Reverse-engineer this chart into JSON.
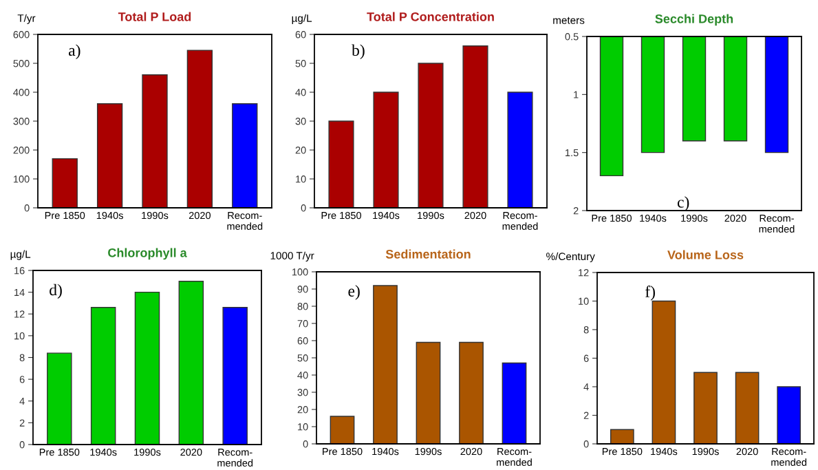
{
  "chart_data": [
    {
      "type": "bar",
      "title": "Total P Load",
      "ylabel": "T/yr",
      "categories": [
        "Pre 1850",
        "1940s",
        "1990s",
        "2020",
        "Recom-\nmended"
      ],
      "values": [
        170,
        360,
        460,
        545,
        360
      ],
      "colors": [
        "#aa0000",
        "#aa0000",
        "#aa0000",
        "#aa0000",
        "#0000ff"
      ],
      "ylim": [
        0,
        600
      ],
      "yticks": [
        0,
        100,
        200,
        300,
        400,
        500,
        600
      ],
      "annotations": [
        "a)"
      ],
      "grid": false,
      "legend": false
    },
    {
      "type": "bar",
      "title": "Total P Concentration",
      "ylabel": "µg/L",
      "categories": [
        "Pre 1850",
        "1940s",
        "1990s",
        "2020",
        "Recom-\nmended"
      ],
      "values": [
        30,
        40,
        50,
        56,
        40
      ],
      "colors": [
        "#aa0000",
        "#aa0000",
        "#aa0000",
        "#aa0000",
        "#0000ff"
      ],
      "ylim": [
        0,
        60
      ],
      "yticks": [
        0,
        10,
        20,
        30,
        40,
        50,
        60
      ],
      "annotations": [
        "b)"
      ],
      "grid": false,
      "legend": false
    },
    {
      "type": "bar",
      "title": "Secchi Depth",
      "ylabel": "meters",
      "categories": [
        "Pre 1850",
        "1940s",
        "1990s",
        "2020",
        "Recom-\nmended"
      ],
      "values": [
        1.7,
        1.5,
        1.4,
        1.4,
        1.5
      ],
      "colors": [
        "#00cc00",
        "#00cc00",
        "#00cc00",
        "#00cc00",
        "#0000ff"
      ],
      "ylim": [
        2,
        0.5
      ],
      "yticks": [
        0.5,
        1,
        1.5,
        2
      ],
      "annotations": [
        "c)"
      ],
      "grid": false,
      "legend": false
    },
    {
      "type": "bar",
      "title": "Chlorophyll a",
      "ylabel": "µg/L",
      "categories": [
        "Pre 1850",
        "1940s",
        "1990s",
        "2020",
        "Recom-\nmended"
      ],
      "values": [
        8.4,
        12.6,
        14,
        15,
        12.6
      ],
      "colors": [
        "#00cc00",
        "#00cc00",
        "#00cc00",
        "#00cc00",
        "#0000ff"
      ],
      "ylim": [
        0,
        16
      ],
      "yticks": [
        0,
        2,
        4,
        6,
        8,
        10,
        12,
        14,
        16
      ],
      "annotations": [
        "d)"
      ],
      "grid": false,
      "legend": false
    },
    {
      "type": "bar",
      "title": "Sedimentation",
      "ylabel": "1000 T/yr",
      "categories": [
        "Pre 1850",
        "1940s",
        "1990s",
        "2020",
        "Recom-\nmended"
      ],
      "values": [
        16,
        92,
        59,
        59,
        47
      ],
      "colors": [
        "#aa5500",
        "#aa5500",
        "#aa5500",
        "#aa5500",
        "#0000ff"
      ],
      "ylim": [
        0,
        100
      ],
      "yticks": [
        0,
        10,
        20,
        30,
        40,
        50,
        60,
        70,
        80,
        90,
        100
      ],
      "annotations": [
        "e)"
      ],
      "grid": false,
      "legend": false
    },
    {
      "type": "bar",
      "title": "Volume Loss",
      "ylabel": "%/Century",
      "categories": [
        "Pre 1850",
        "1940s",
        "1990s",
        "2020",
        "Recom-\nmended"
      ],
      "values": [
        1,
        10,
        5,
        5,
        4
      ],
      "colors": [
        "#aa5500",
        "#aa5500",
        "#aa5500",
        "#aa5500",
        "#0000ff"
      ],
      "ylim": [
        0,
        12
      ],
      "yticks": [
        0,
        2,
        4,
        6,
        8,
        10,
        12
      ],
      "annotations": [
        "f)"
      ],
      "grid": false,
      "legend": false
    }
  ]
}
